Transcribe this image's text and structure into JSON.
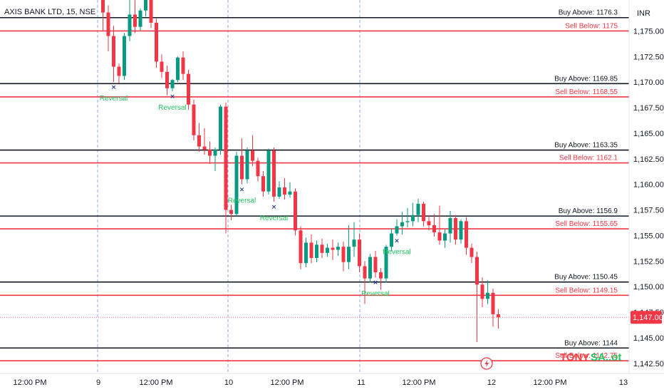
{
  "header": {
    "title": "AXIS BANK LTD, 15, NSE",
    "currency": "INR"
  },
  "current_price_label": "1,147.00",
  "watermark": {
    "part1": "TONY",
    "part2": "SA..ot"
  },
  "flash_icon": "lightning-icon",
  "colors": {
    "up": "#089981",
    "down": "#f23645",
    "buy_line": "#131722",
    "sell_line": "#f23645",
    "reversal": "#22c55e",
    "separator": "#2962ff"
  },
  "chart_data": {
    "type": "candlestick",
    "title": "AXIS BANK LTD, 15, NSE",
    "ylim": [
      1141.5,
      1178.0
    ],
    "y_ticks": [
      "1,142.50",
      "1,145.00",
      "1,147.50",
      "1,150.00",
      "1,152.50",
      "1,155.00",
      "1,157.50",
      "1,160.00",
      "1,162.50",
      "1,165.00",
      "1,167.50",
      "1,170.00",
      "1,172.50",
      "1,175.00"
    ],
    "x_ticks": [
      "12:00 PM",
      "9",
      "12:00 PM",
      "10",
      "12:00 PM",
      "11",
      "12:00 PM",
      "12",
      "12:00 PM",
      "13"
    ],
    "day_separators": [
      "9",
      "10",
      "11"
    ],
    "current_price": 1147.0,
    "levels": [
      {
        "label": "Buy Above: 1176.3",
        "value": 1176.3,
        "kind": "buy"
      },
      {
        "label": "Sell Below: 1175",
        "value": 1175.0,
        "kind": "sell"
      },
      {
        "label": "Buy Above: 1169.85",
        "value": 1169.85,
        "kind": "buy"
      },
      {
        "label": "Sell Below: 1168.55",
        "value": 1168.55,
        "kind": "sell"
      },
      {
        "label": "Buy Above: 1163.35",
        "value": 1163.35,
        "kind": "buy"
      },
      {
        "label": "Sell Below: 1162.1",
        "value": 1162.1,
        "kind": "sell"
      },
      {
        "label": "Buy Above: 1156.9",
        "value": 1156.9,
        "kind": "buy"
      },
      {
        "label": "Sell Below: 1155.65",
        "value": 1155.65,
        "kind": "sell"
      },
      {
        "label": "Buy Above: 1150.45",
        "value": 1150.45,
        "kind": "buy"
      },
      {
        "label": "Sell Below: 1149.15",
        "value": 1149.15,
        "kind": "sell"
      },
      {
        "label": "Buy Above: 1144",
        "value": 1144.0,
        "kind": "buy"
      },
      {
        "label": "Sell Below: 1142.75",
        "value": 1142.75,
        "kind": "sell"
      }
    ],
    "reversals": [
      {
        "label": "Reversal",
        "candle": 2
      },
      {
        "label": "Reversal",
        "candle": 13
      },
      {
        "label": "Reversal",
        "candle": 26
      },
      {
        "label": "Reversal",
        "candle": 32
      },
      {
        "label": "Reversal",
        "candle": 51
      },
      {
        "label": "Reversal",
        "candle": 55
      }
    ],
    "candles": [
      {
        "o": 1178.5,
        "h": 1180.0,
        "c": 1176.8,
        "l": 1175.0
      },
      {
        "o": 1176.8,
        "h": 1177.5,
        "c": 1174.5,
        "l": 1173.0
      },
      {
        "o": 1174.5,
        "h": 1175.5,
        "c": 1171.5,
        "l": 1170.0
      },
      {
        "o": 1171.5,
        "h": 1171.8,
        "c": 1170.6,
        "l": 1169.9
      },
      {
        "o": 1170.6,
        "h": 1174.8,
        "c": 1174.5,
        "l": 1170.2
      },
      {
        "o": 1174.5,
        "h": 1178.5,
        "c": 1176.6,
        "l": 1174.0
      },
      {
        "o": 1176.6,
        "h": 1178.0,
        "c": 1175.4,
        "l": 1174.8
      },
      {
        "o": 1175.4,
        "h": 1177.2,
        "c": 1177.0,
        "l": 1175.0
      },
      {
        "o": 1177.0,
        "h": 1179.5,
        "c": 1178.8,
        "l": 1176.4
      },
      {
        "o": 1178.8,
        "h": 1179.2,
        "c": 1175.8,
        "l": 1175.3
      },
      {
        "o": 1175.8,
        "h": 1176.2,
        "c": 1172.0,
        "l": 1171.4
      },
      {
        "o": 1172.0,
        "h": 1172.7,
        "c": 1171.0,
        "l": 1170.4
      },
      {
        "o": 1171.0,
        "h": 1171.6,
        "c": 1169.4,
        "l": 1168.7
      },
      {
        "o": 1169.4,
        "h": 1170.3,
        "c": 1170.2,
        "l": 1169.1
      },
      {
        "o": 1170.2,
        "h": 1172.5,
        "c": 1172.4,
        "l": 1170.0
      },
      {
        "o": 1172.4,
        "h": 1173.0,
        "c": 1170.8,
        "l": 1170.2
      },
      {
        "o": 1170.8,
        "h": 1171.2,
        "c": 1167.8,
        "l": 1167.3
      },
      {
        "o": 1167.8,
        "h": 1168.3,
        "c": 1164.8,
        "l": 1164.3
      },
      {
        "o": 1164.8,
        "h": 1166.0,
        "c": 1163.7,
        "l": 1163.2
      },
      {
        "o": 1163.7,
        "h": 1165.5,
        "c": 1163.4,
        "l": 1162.9
      },
      {
        "o": 1163.4,
        "h": 1164.2,
        "c": 1162.8,
        "l": 1162.0
      },
      {
        "o": 1162.8,
        "h": 1163.6,
        "c": 1163.4,
        "l": 1161.3
      },
      {
        "o": 1163.4,
        "h": 1167.8,
        "c": 1167.6,
        "l": 1162.9
      },
      {
        "o": 1167.6,
        "h": 1168.0,
        "c": 1157.5,
        "l": 1155.2
      },
      {
        "o": 1157.5,
        "h": 1158.0,
        "c": 1157.1,
        "l": 1156.5
      },
      {
        "o": 1157.1,
        "h": 1163.2,
        "c": 1162.8,
        "l": 1156.9
      },
      {
        "o": 1162.8,
        "h": 1164.5,
        "c": 1160.5,
        "l": 1160.0
      },
      {
        "o": 1160.5,
        "h": 1163.6,
        "c": 1163.3,
        "l": 1160.1
      },
      {
        "o": 1163.3,
        "h": 1164.8,
        "c": 1162.3,
        "l": 1161.8
      },
      {
        "o": 1162.3,
        "h": 1162.6,
        "c": 1160.8,
        "l": 1160.3
      },
      {
        "o": 1160.8,
        "h": 1161.3,
        "c": 1159.3,
        "l": 1158.8
      },
      {
        "o": 1159.3,
        "h": 1163.5,
        "c": 1163.3,
        "l": 1159.0
      },
      {
        "o": 1163.3,
        "h": 1163.6,
        "c": 1158.8,
        "l": 1158.3
      },
      {
        "o": 1158.8,
        "h": 1160.3,
        "c": 1159.7,
        "l": 1158.6
      },
      {
        "o": 1159.7,
        "h": 1160.6,
        "c": 1159.0,
        "l": 1158.5
      },
      {
        "o": 1159.0,
        "h": 1160.2,
        "c": 1159.3,
        "l": 1158.7
      },
      {
        "o": 1159.3,
        "h": 1159.6,
        "c": 1155.5,
        "l": 1155.0
      },
      {
        "o": 1155.5,
        "h": 1155.9,
        "c": 1152.3,
        "l": 1151.7
      },
      {
        "o": 1152.3,
        "h": 1154.8,
        "c": 1154.3,
        "l": 1151.9
      },
      {
        "o": 1154.3,
        "h": 1155.1,
        "c": 1152.8,
        "l": 1152.3
      },
      {
        "o": 1152.8,
        "h": 1154.5,
        "c": 1154.1,
        "l": 1152.4
      },
      {
        "o": 1154.1,
        "h": 1154.7,
        "c": 1153.3,
        "l": 1152.8
      },
      {
        "o": 1153.3,
        "h": 1154.2,
        "c": 1153.8,
        "l": 1152.9
      },
      {
        "o": 1153.8,
        "h": 1154.6,
        "c": 1153.6,
        "l": 1152.6
      },
      {
        "o": 1153.6,
        "h": 1154.3,
        "c": 1153.9,
        "l": 1153.0
      },
      {
        "o": 1153.9,
        "h": 1154.4,
        "c": 1152.4,
        "l": 1151.5
      },
      {
        "o": 1152.4,
        "h": 1156.0,
        "c": 1153.9,
        "l": 1151.7
      },
      {
        "o": 1153.9,
        "h": 1156.3,
        "c": 1154.6,
        "l": 1152.9
      },
      {
        "o": 1154.6,
        "h": 1155.2,
        "c": 1152.0,
        "l": 1151.4
      },
      {
        "o": 1152.0,
        "h": 1152.5,
        "c": 1150.8,
        "l": 1148.3
      },
      {
        "o": 1150.8,
        "h": 1153.2,
        "c": 1152.9,
        "l": 1150.4
      },
      {
        "o": 1152.9,
        "h": 1153.5,
        "c": 1151.4,
        "l": 1150.9
      },
      {
        "o": 1151.4,
        "h": 1151.8,
        "c": 1150.8,
        "l": 1149.7
      },
      {
        "o": 1150.8,
        "h": 1154.1,
        "c": 1153.9,
        "l": 1150.4
      },
      {
        "o": 1153.9,
        "h": 1155.7,
        "c": 1155.2,
        "l": 1153.5
      },
      {
        "o": 1155.2,
        "h": 1156.6,
        "c": 1155.9,
        "l": 1155.0
      },
      {
        "o": 1155.9,
        "h": 1157.3,
        "c": 1156.3,
        "l": 1155.1
      },
      {
        "o": 1156.3,
        "h": 1157.7,
        "c": 1156.4,
        "l": 1155.8
      },
      {
        "o": 1156.4,
        "h": 1158.2,
        "c": 1157.0,
        "l": 1155.9
      },
      {
        "o": 1157.0,
        "h": 1158.6,
        "c": 1158.1,
        "l": 1156.3
      },
      {
        "o": 1158.1,
        "h": 1158.3,
        "c": 1156.4,
        "l": 1155.9
      },
      {
        "o": 1156.4,
        "h": 1157.0,
        "c": 1156.0,
        "l": 1155.5
      },
      {
        "o": 1156.0,
        "h": 1157.1,
        "c": 1155.3,
        "l": 1154.9
      },
      {
        "o": 1155.3,
        "h": 1157.9,
        "c": 1154.5,
        "l": 1154.1
      },
      {
        "o": 1154.5,
        "h": 1155.6,
        "c": 1155.2,
        "l": 1153.8
      },
      {
        "o": 1155.2,
        "h": 1157.4,
        "c": 1156.7,
        "l": 1154.3
      },
      {
        "o": 1156.7,
        "h": 1157.0,
        "c": 1154.6,
        "l": 1154.1
      },
      {
        "o": 1154.6,
        "h": 1156.6,
        "c": 1156.4,
        "l": 1154.2
      },
      {
        "o": 1156.4,
        "h": 1156.8,
        "c": 1153.8,
        "l": 1153.1
      },
      {
        "o": 1153.8,
        "h": 1154.2,
        "c": 1152.9,
        "l": 1152.3
      },
      {
        "o": 1152.9,
        "h": 1153.4,
        "c": 1150.2,
        "l": 1144.6
      },
      {
        "o": 1150.2,
        "h": 1150.9,
        "c": 1148.8,
        "l": 1148.0
      },
      {
        "o": 1148.8,
        "h": 1150.6,
        "c": 1149.4,
        "l": 1148.3
      },
      {
        "o": 1149.4,
        "h": 1149.8,
        "c": 1147.3,
        "l": 1146.1
      },
      {
        "o": 1147.3,
        "h": 1147.8,
        "c": 1147.0,
        "l": 1145.9
      }
    ]
  }
}
